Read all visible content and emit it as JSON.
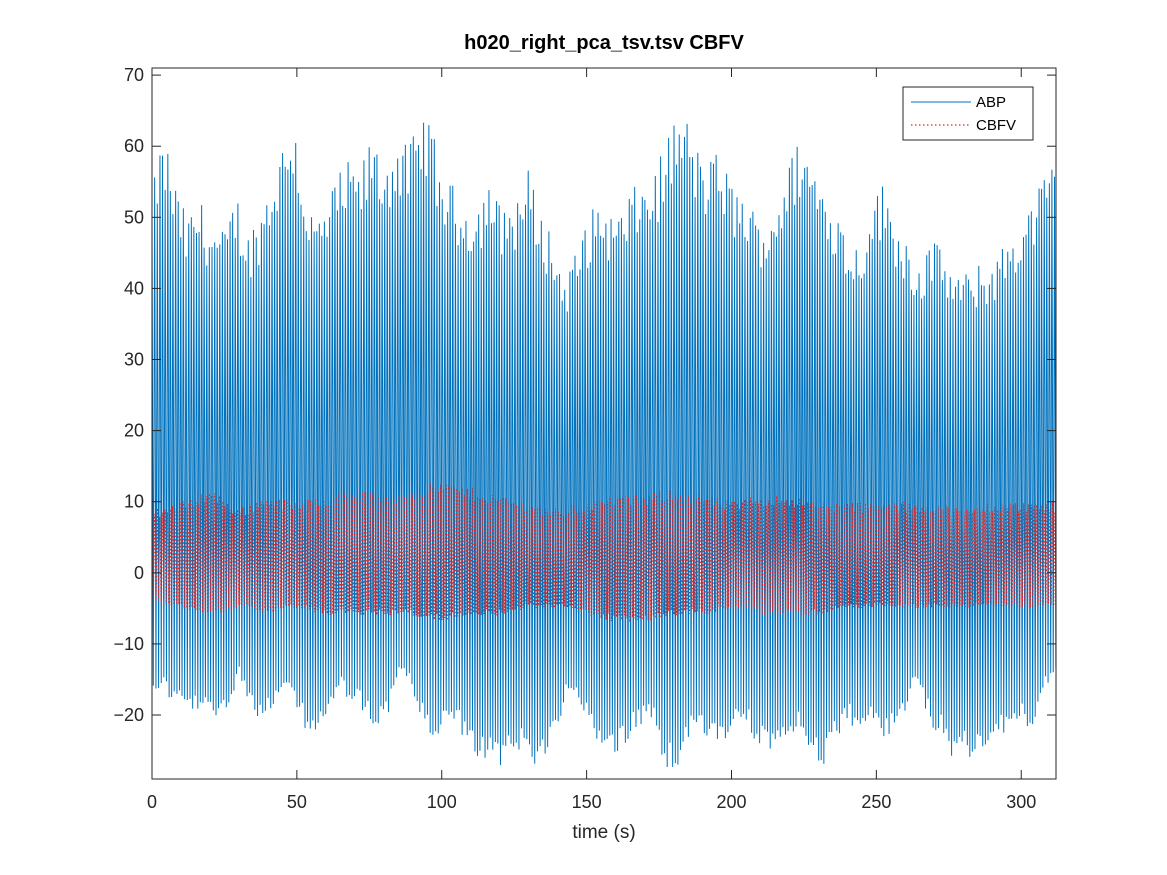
{
  "chart_data": {
    "type": "line",
    "title": "h020_right_pca_tsv.tsv CBFV",
    "xlabel": "time (s)",
    "ylabel": "",
    "xlim": [
      0,
      312
    ],
    "ylim": [
      -29,
      71
    ],
    "xticks": [
      0,
      50,
      100,
      150,
      200,
      250,
      300
    ],
    "yticks": [
      -20,
      -10,
      0,
      10,
      20,
      30,
      40,
      50,
      60,
      70
    ],
    "ytick_labels": [
      "−20",
      "−10",
      "0",
      "10",
      "20",
      "30",
      "40",
      "50",
      "60",
      "70"
    ],
    "grid": false,
    "legend_position": "top-right",
    "series": [
      {
        "name": "ABP",
        "color": "#0072BD",
        "style": "solid",
        "beat_period_s": 0.9,
        "upper_envelope": [
          [
            0,
            52
          ],
          [
            2,
            60
          ],
          [
            5,
            61
          ],
          [
            8,
            55
          ],
          [
            12,
            50
          ],
          [
            16,
            53
          ],
          [
            20,
            50
          ],
          [
            25,
            48
          ],
          [
            29,
            54
          ],
          [
            33,
            48
          ],
          [
            37,
            51
          ],
          [
            41,
            56
          ],
          [
            46,
            62
          ],
          [
            49,
            65
          ],
          [
            52,
            56
          ],
          [
            56,
            50
          ],
          [
            60,
            52
          ],
          [
            64,
            56
          ],
          [
            68,
            58
          ],
          [
            72,
            57
          ],
          [
            76,
            62
          ],
          [
            80,
            58
          ],
          [
            84,
            62
          ],
          [
            88,
            60
          ],
          [
            92,
            63
          ],
          [
            95,
            66
          ],
          [
            99,
            58
          ],
          [
            103,
            55
          ],
          [
            107,
            53
          ],
          [
            112,
            52
          ],
          [
            116,
            56
          ],
          [
            120,
            52
          ],
          [
            125,
            53
          ],
          [
            130,
            57
          ],
          [
            134,
            51
          ],
          [
            138,
            48
          ],
          [
            142,
            42
          ],
          [
            146,
            45
          ],
          [
            150,
            50
          ],
          [
            155,
            53
          ],
          [
            160,
            50
          ],
          [
            164,
            53
          ],
          [
            168,
            55
          ],
          [
            172,
            56
          ],
          [
            176,
            59
          ],
          [
            180,
            64
          ],
          [
            184,
            65
          ],
          [
            188,
            60
          ],
          [
            192,
            58
          ],
          [
            196,
            60
          ],
          [
            200,
            55
          ],
          [
            204,
            54
          ],
          [
            208,
            51
          ],
          [
            212,
            50
          ],
          [
            216,
            54
          ],
          [
            220,
            58
          ],
          [
            224,
            62
          ],
          [
            228,
            58
          ],
          [
            232,
            55
          ],
          [
            236,
            52
          ],
          [
            240,
            48
          ],
          [
            244,
            46
          ],
          [
            248,
            53
          ],
          [
            252,
            55
          ],
          [
            256,
            51
          ],
          [
            260,
            48
          ],
          [
            264,
            44
          ],
          [
            268,
            46
          ],
          [
            272,
            47
          ],
          [
            276,
            43
          ],
          [
            280,
            42
          ],
          [
            284,
            43
          ],
          [
            288,
            44
          ],
          [
            292,
            45
          ],
          [
            296,
            48
          ],
          [
            300,
            50
          ],
          [
            304,
            53
          ],
          [
            308,
            56
          ],
          [
            312,
            59
          ]
        ],
        "lower_envelope": [
          [
            0,
            -18
          ],
          [
            3,
            -16
          ],
          [
            6,
            -18
          ],
          [
            10,
            -19
          ],
          [
            14,
            -20
          ],
          [
            18,
            -20
          ],
          [
            22,
            -21
          ],
          [
            26,
            -20
          ],
          [
            30,
            -14
          ],
          [
            33,
            -18
          ],
          [
            37,
            -21
          ],
          [
            41,
            -20
          ],
          [
            45,
            -17
          ],
          [
            49,
            -19
          ],
          [
            53,
            -22
          ],
          [
            57,
            -24
          ],
          [
            61,
            -20
          ],
          [
            65,
            -17
          ],
          [
            69,
            -18
          ],
          [
            73,
            -20
          ],
          [
            77,
            -22
          ],
          [
            81,
            -21
          ],
          [
            85,
            -14
          ],
          [
            88,
            -15
          ],
          [
            92,
            -20
          ],
          [
            96,
            -24
          ],
          [
            100,
            -23
          ],
          [
            104,
            -21
          ],
          [
            108,
            -24
          ],
          [
            112,
            -26
          ],
          [
            116,
            -27
          ],
          [
            120,
            -28
          ],
          [
            124,
            -26
          ],
          [
            128,
            -25
          ],
          [
            132,
            -27
          ],
          [
            136,
            -26
          ],
          [
            140,
            -22
          ],
          [
            144,
            -16
          ],
          [
            148,
            -20
          ],
          [
            152,
            -23
          ],
          [
            156,
            -25
          ],
          [
            160,
            -26
          ],
          [
            164,
            -24
          ],
          [
            168,
            -22
          ],
          [
            172,
            -20
          ],
          [
            176,
            -26
          ],
          [
            180,
            -29
          ],
          [
            184,
            -24
          ],
          [
            188,
            -22
          ],
          [
            192,
            -25
          ],
          [
            196,
            -24
          ],
          [
            200,
            -23
          ],
          [
            204,
            -21
          ],
          [
            208,
            -24
          ],
          [
            212,
            -26
          ],
          [
            216,
            -24
          ],
          [
            220,
            -25
          ],
          [
            224,
            -22
          ],
          [
            228,
            -26
          ],
          [
            232,
            -28
          ],
          [
            236,
            -24
          ],
          [
            240,
            -21
          ],
          [
            244,
            -23
          ],
          [
            248,
            -21
          ],
          [
            252,
            -24
          ],
          [
            256,
            -22
          ],
          [
            260,
            -20
          ],
          [
            264,
            -15
          ],
          [
            268,
            -21
          ],
          [
            272,
            -23
          ],
          [
            276,
            -26
          ],
          [
            280,
            -25
          ],
          [
            284,
            -27
          ],
          [
            288,
            -25
          ],
          [
            292,
            -24
          ],
          [
            296,
            -22
          ],
          [
            300,
            -20
          ],
          [
            304,
            -24
          ],
          [
            308,
            -16
          ],
          [
            312,
            -15
          ]
        ]
      },
      {
        "name": "CBFV",
        "color": "#D62728",
        "style": "dotted",
        "beat_period_s": 0.9,
        "upper_envelope": [
          [
            0,
            9
          ],
          [
            10,
            10
          ],
          [
            20,
            12
          ],
          [
            30,
            9
          ],
          [
            40,
            11
          ],
          [
            50,
            10
          ],
          [
            60,
            11
          ],
          [
            70,
            12
          ],
          [
            80,
            11
          ],
          [
            90,
            12
          ],
          [
            100,
            13
          ],
          [
            110,
            12
          ],
          [
            120,
            11
          ],
          [
            130,
            10
          ],
          [
            140,
            9
          ],
          [
            150,
            10
          ],
          [
            160,
            11
          ],
          [
            170,
            11
          ],
          [
            180,
            12
          ],
          [
            190,
            11
          ],
          [
            200,
            10
          ],
          [
            210,
            11
          ],
          [
            220,
            11
          ],
          [
            230,
            10
          ],
          [
            240,
            10
          ],
          [
            250,
            10
          ],
          [
            260,
            10
          ],
          [
            270,
            10
          ],
          [
            280,
            9
          ],
          [
            290,
            10
          ],
          [
            300,
            10
          ],
          [
            312,
            10
          ]
        ],
        "lower_envelope": [
          [
            0,
            -4
          ],
          [
            10,
            -5
          ],
          [
            20,
            -6
          ],
          [
            30,
            -5
          ],
          [
            40,
            -6
          ],
          [
            50,
            -5
          ],
          [
            60,
            -6
          ],
          [
            70,
            -6
          ],
          [
            80,
            -6
          ],
          [
            90,
            -6
          ],
          [
            100,
            -7
          ],
          [
            110,
            -6
          ],
          [
            120,
            -6
          ],
          [
            130,
            -5
          ],
          [
            140,
            -5
          ],
          [
            150,
            -6
          ],
          [
            160,
            -7
          ],
          [
            170,
            -7
          ],
          [
            180,
            -6
          ],
          [
            190,
            -6
          ],
          [
            200,
            -5
          ],
          [
            210,
            -6
          ],
          [
            220,
            -6
          ],
          [
            230,
            -6
          ],
          [
            240,
            -5
          ],
          [
            250,
            -5
          ],
          [
            260,
            -5
          ],
          [
            270,
            -5
          ],
          [
            280,
            -5
          ],
          [
            290,
            -5
          ],
          [
            300,
            -5
          ],
          [
            312,
            -5
          ]
        ]
      }
    ]
  }
}
